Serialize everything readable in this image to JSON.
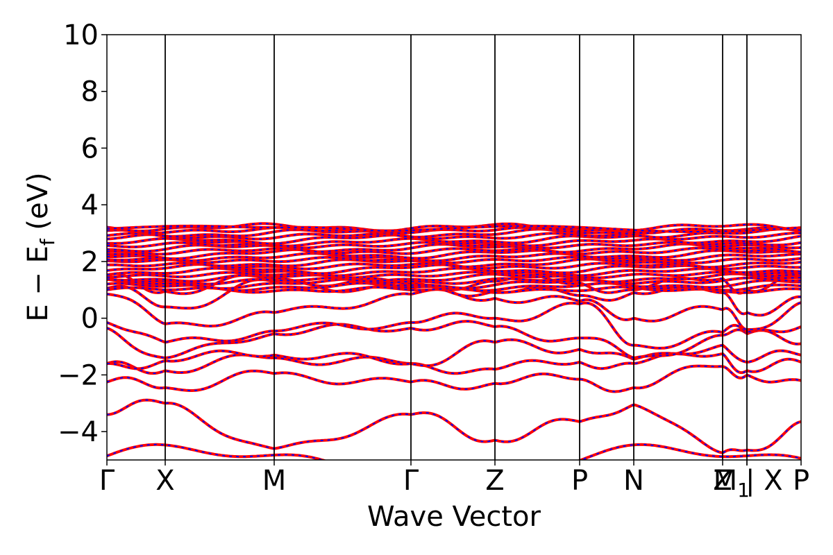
{
  "chart_data": {
    "type": "line",
    "xlabel": "Wave Vector",
    "ylabel": "E − E",
    "ylabel_sub": "f",
    "ylabel_unit": " (eV)",
    "ylim": [
      -5,
      10
    ],
    "y_ticks": [
      -4,
      -2,
      0,
      2,
      4,
      6,
      8,
      10
    ],
    "y_tick_labels": [
      "−4",
      "−2",
      "0",
      "2",
      "4",
      "6",
      "8",
      "10"
    ],
    "x_range": [
      0,
      12
    ],
    "high_symmetry_points": [
      {
        "label": "Γ",
        "x": 0.0
      },
      {
        "label": "X",
        "x": 0.84
      },
      {
        "label": "M",
        "x": 2.41
      },
      {
        "label": "Γ",
        "x": 4.38
      },
      {
        "label": "Z",
        "x": 5.59
      },
      {
        "label": "P",
        "x": 6.81
      },
      {
        "label": "N",
        "x": 7.59
      },
      {
        "label": "Z",
        "x": 8.87
      },
      {
        "label": "M",
        "x": 9.22,
        "sub": "1"
      },
      {
        "label": "| X",
        "x": 9.22
      },
      {
        "label": "P",
        "x": 10.0
      }
    ],
    "vertical_lines_x": [
      0.84,
      2.41,
      4.38,
      5.59,
      6.81,
      7.59,
      8.87,
      9.22
    ],
    "line_colors": {
      "spin_up": "#ff0000",
      "spin_down": "#0000ff"
    },
    "bands_note_values": {
      "Gamma": [
        -3.4,
        -2.25,
        -1.6,
        -1.6,
        -0.35,
        -0.15,
        0.85,
        1.05,
        1.5
      ],
      "X": [
        -3.0,
        -2.45,
        -1.85,
        -1.5,
        -1.4,
        -0.85,
        -0.2,
        0.4,
        0.95
      ],
      "M": [
        -4.6,
        -1.95,
        -1.4,
        -1.3,
        -0.55,
        -0.45,
        0.2,
        1.3,
        1.4
      ],
      "Gamma2": [
        -3.4,
        -2.25,
        -1.6,
        -1.6,
        -0.35,
        -0.15,
        0.85,
        1.05,
        1.2
      ],
      "Z": [
        -4.3,
        -2.3,
        -1.8,
        -0.85,
        -0.3,
        0.0,
        0.7,
        0.95,
        1.3
      ],
      "P": [
        -3.65,
        -2.15,
        -1.55,
        -1.1,
        -0.7,
        0.5,
        0.6,
        0.8,
        1.25
      ],
      "N": [
        -3.05,
        -2.45,
        -1.6,
        -1.45,
        -1.4,
        -0.95,
        0.0,
        0.9,
        1.0
      ],
      "Z2": [
        -4.75,
        -1.7,
        -1.25,
        -0.95,
        -0.6,
        -0.5,
        0.3,
        0.9,
        1.4
      ],
      "M1": [
        -4.65,
        -2.0,
        -1.85,
        -1.55,
        -0.55,
        -0.5,
        -0.4,
        0.2,
        1.0
      ],
      "P2": [
        -3.65,
        -2.2,
        -1.55,
        -1.3,
        -0.9,
        -0.3,
        0.55,
        0.75,
        1.45
      ]
    }
  }
}
